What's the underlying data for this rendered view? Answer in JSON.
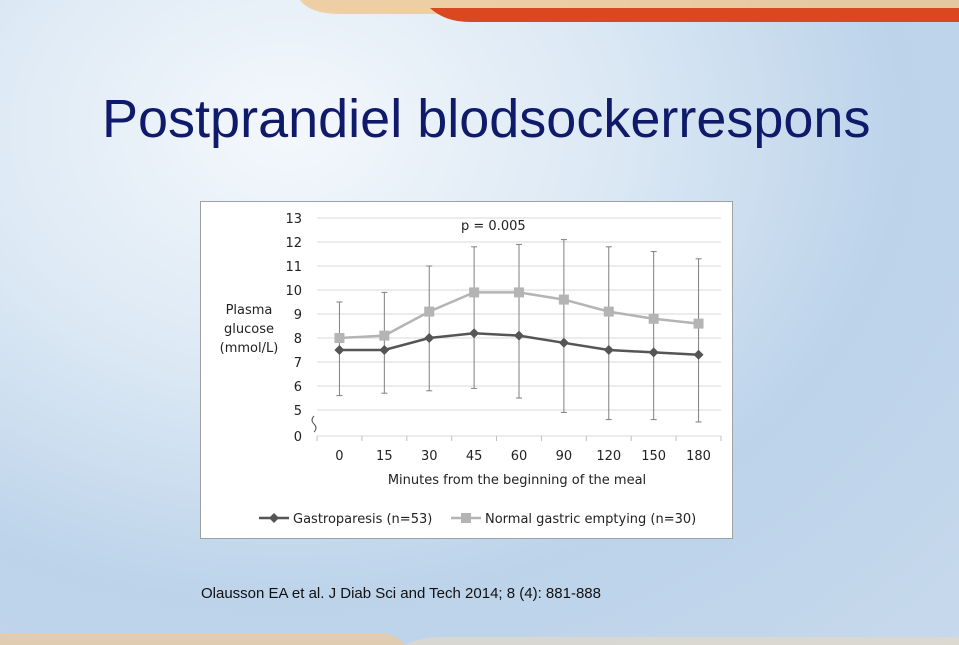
{
  "slide": {
    "title": "Postprandiel blodsockerrespons",
    "citation": "Olausson EA et al. J Diab Sci and Tech 2014; 8 (4): 881-888"
  },
  "colors": {
    "title": "#0f1a6b",
    "accent_bar": "#d9481e",
    "accent_bar_light": "#f0c48a",
    "series_gastroparesis": "#555555",
    "series_normal": "#b4b4b4"
  },
  "chart_data": {
    "type": "line",
    "annotation": "p = 0.005",
    "ylabel": [
      "Plasma",
      "glucose",
      "(mmol/L)"
    ],
    "xlabel": "Minutes from the beginning of the meal",
    "categories": [
      "0",
      "15",
      "30",
      "45",
      "60",
      "90",
      "120",
      "150",
      "180"
    ],
    "y_ticks": [
      "13",
      "12",
      "11",
      "10",
      "9",
      "8",
      "7",
      "6",
      "5",
      "0"
    ],
    "ylim": [
      5,
      13
    ],
    "y_axis_break": true,
    "grid": "horizontal",
    "legend_position": "bottom",
    "series": [
      {
        "name": "Gastroparesis (n=53)",
        "marker": "diamond",
        "values": [
          7.5,
          7.5,
          8.0,
          8.2,
          8.1,
          7.8,
          7.5,
          7.4,
          7.3
        ],
        "err_high": [
          9.5,
          9.9,
          11.0,
          11.8,
          11.9,
          12.1,
          11.8,
          11.6,
          11.3
        ],
        "err_low": [
          5.6,
          5.7,
          5.8,
          5.9,
          5.5,
          4.9,
          4.6,
          4.6,
          4.5
        ]
      },
      {
        "name": "Normal gastric emptying (n=30)",
        "marker": "square",
        "values": [
          8.0,
          8.1,
          9.1,
          9.9,
          9.9,
          9.6,
          9.1,
          8.8,
          8.6
        ],
        "err_high": [],
        "err_low": []
      }
    ]
  }
}
